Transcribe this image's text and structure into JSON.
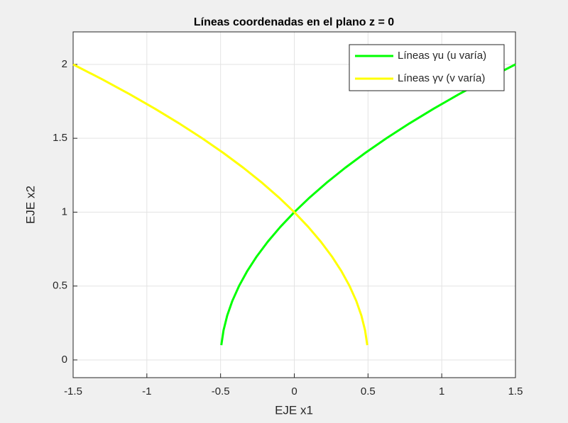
{
  "chart_data": {
    "type": "line",
    "title": "Líneas coordenadas en el plano z = 0",
    "x_label": "EJE x1",
    "y_label": "EJE x2",
    "xlim": [
      -1.5,
      1.5
    ],
    "ylim": [
      -0.12,
      2.22
    ],
    "xticks": [
      -1.5,
      -1,
      -0.5,
      0,
      0.5,
      1,
      1.5
    ],
    "yticks": [
      0,
      0.5,
      1,
      1.5,
      2
    ],
    "grid": true,
    "legend": "upper right",
    "series": [
      {
        "name": "Líneas γu (u varía)",
        "color": "#00ff00",
        "x": [
          -0.495,
          -0.48,
          -0.455,
          -0.42,
          -0.375,
          -0.32,
          -0.255,
          -0.18,
          -0.095,
          0,
          0.105,
          0.22,
          0.345,
          0.48,
          0.625,
          0.78,
          0.945,
          1.12,
          1.305,
          1.5
        ],
        "values": [
          0.1,
          0.2,
          0.3,
          0.4,
          0.5,
          0.6,
          0.7,
          0.8,
          0.9,
          1.0,
          1.1,
          1.2,
          1.3,
          1.4,
          1.5,
          1.6,
          1.7,
          1.8,
          1.9,
          2.0
        ]
      },
      {
        "name": "Líneas γv (v varía)",
        "color": "#ffff00",
        "x": [
          0.495,
          0.48,
          0.455,
          0.42,
          0.375,
          0.32,
          0.255,
          0.18,
          0.095,
          0,
          -0.105,
          -0.22,
          -0.345,
          -0.48,
          -0.625,
          -0.78,
          -0.945,
          -1.12,
          -1.305,
          -1.5
        ],
        "values": [
          0.1,
          0.2,
          0.3,
          0.4,
          0.5,
          0.6,
          0.7,
          0.8,
          0.9,
          1.0,
          1.1,
          1.2,
          1.3,
          1.4,
          1.5,
          1.6,
          1.7,
          1.8,
          1.9,
          2.0
        ]
      }
    ]
  }
}
